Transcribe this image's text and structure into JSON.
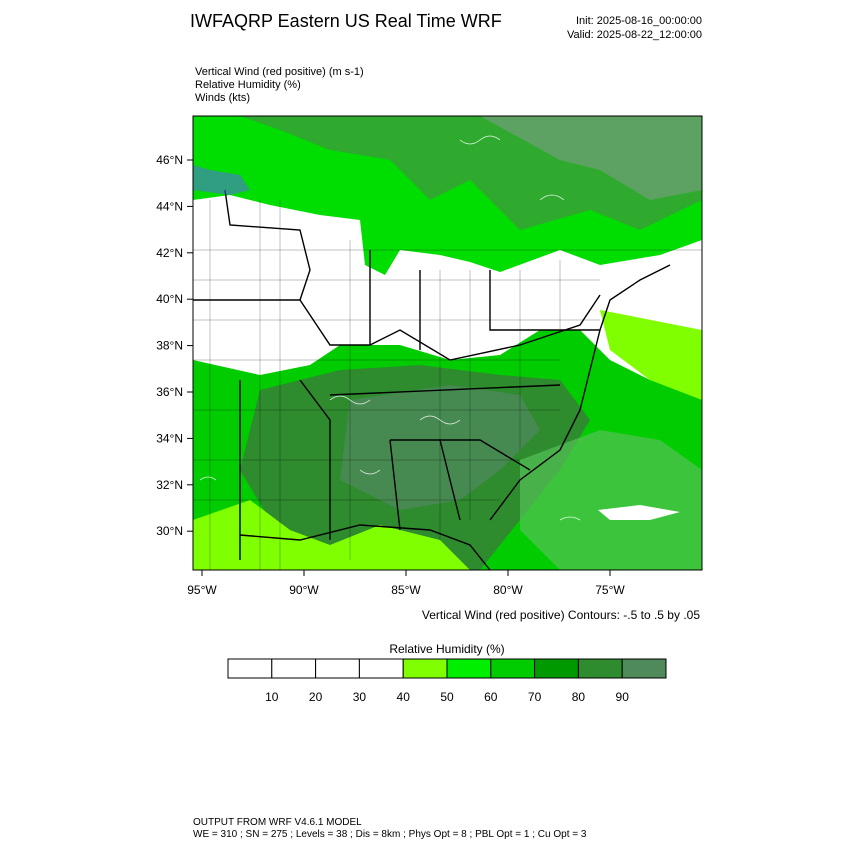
{
  "header": {
    "title": "IWFAQRP Eastern US Real Time WRF",
    "init": "Init: 2025-08-16_00:00:00",
    "valid": "Valid: 2025-08-22_12:00:00"
  },
  "fields": [
    "Vertical Wind (red positive)   (m s-1)",
    "Relative Humidity   (%)",
    "Winds   (kts)"
  ],
  "map": {
    "lat_labels": [
      "46°N",
      "44°N",
      "42°N",
      "40°N",
      "38°N",
      "36°N",
      "34°N",
      "32°N",
      "30°N"
    ],
    "lon_labels": [
      "95°W",
      "90°W",
      "85°W",
      "80°W",
      "75°W"
    ],
    "contour_note": "Vertical Wind (red positive) Contours: -.5 to .5 by .05"
  },
  "colorbar": {
    "title": "Relative Humidity  (%)",
    "labels": [
      "10",
      "20",
      "30",
      "40",
      "50",
      "60",
      "70",
      "80",
      "90"
    ],
    "colors": [
      "#ffffff",
      "#ffffff",
      "#ffffff",
      "#ffffff",
      "#80ff00",
      "#00ee00",
      "#00cc00",
      "#009a00",
      "#2e8b2e",
      "#4e8a5a"
    ]
  },
  "footer": {
    "line1": "OUTPUT FROM WRF V4.6.1 MODEL",
    "line2": "WE = 310 ; SN = 275 ; Levels = 38 ; Dis = 8km ; Phys Opt = 8 ; PBL Opt = 1 ; Cu Opt = 3"
  }
}
